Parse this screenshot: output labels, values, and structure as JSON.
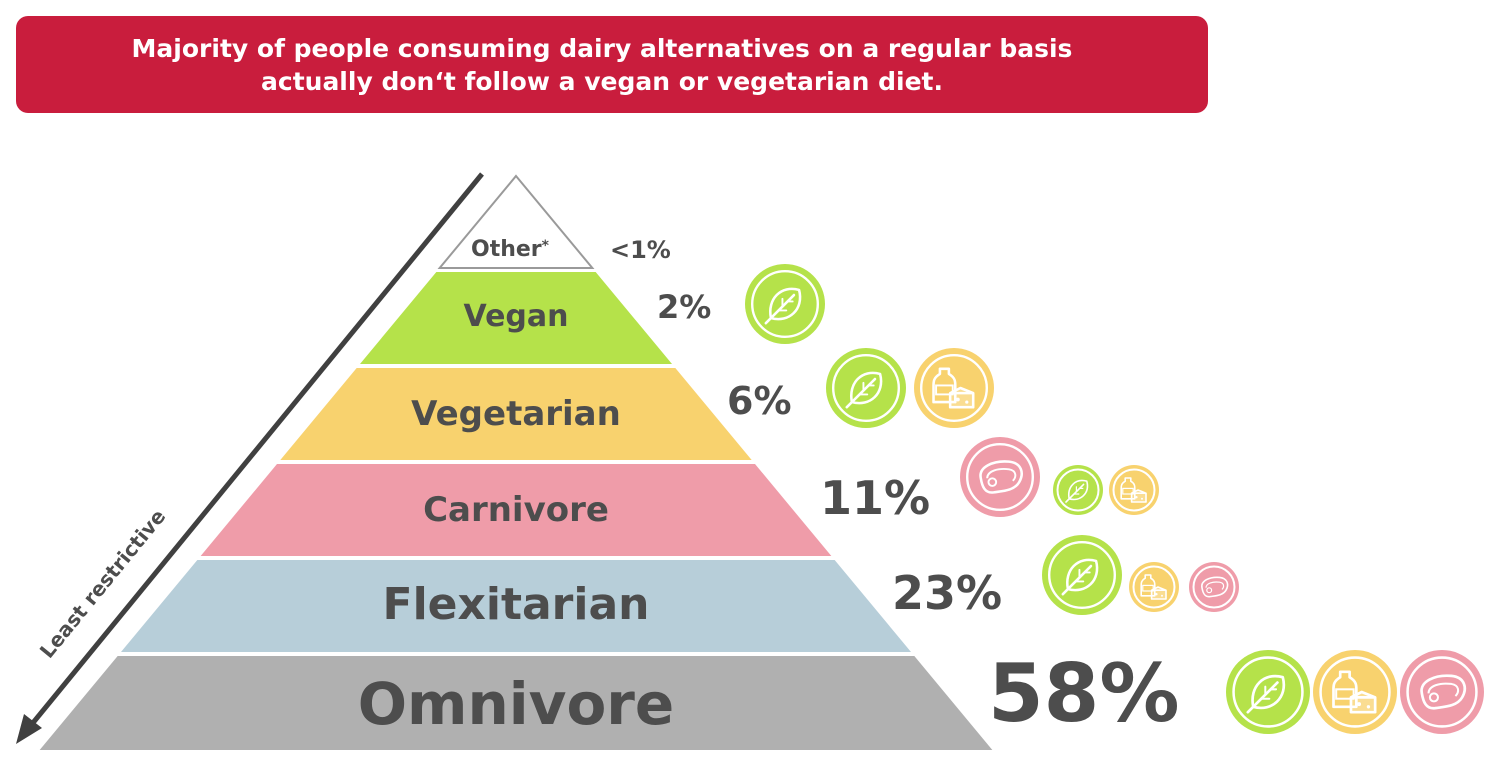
{
  "header": {
    "line1": "Majority of people consuming dairy alternatives on a regular basis",
    "line2": "actually don‘t follow a vegan or vegetarian diet."
  },
  "axis": {
    "label": "Least restrictive"
  },
  "colors": {
    "banner": "#c91d3d",
    "green": "#b5e24a",
    "yellow": "#f8d26e",
    "pink": "#ef9ca9",
    "blue": "#b7ced9",
    "gray": "#b0b0b0",
    "text": "#4d4d4d"
  },
  "levels": [
    {
      "name": "Other",
      "note": "*",
      "percent": "<1%",
      "color": "#ffffff",
      "icons": []
    },
    {
      "name": "Vegan",
      "percent": "2%",
      "color": "#b5e24a",
      "icons": [
        "leaf-icon"
      ]
    },
    {
      "name": "Vegetarian",
      "percent": "6%",
      "color": "#f8d26e",
      "icons": [
        "leaf-icon",
        "dairy-icon"
      ]
    },
    {
      "name": "Carnivore",
      "percent": "11%",
      "color": "#ef9ca9",
      "icons": [
        "meat-icon",
        "leaf-icon",
        "dairy-icon"
      ]
    },
    {
      "name": "Flexitarian",
      "percent": "23%",
      "color": "#b7ced9",
      "icons": [
        "leaf-icon",
        "dairy-icon",
        "meat-icon"
      ]
    },
    {
      "name": "Omnivore",
      "percent": "58%",
      "color": "#b0b0b0",
      "icons": [
        "leaf-icon",
        "dairy-icon",
        "meat-icon"
      ]
    }
  ]
}
